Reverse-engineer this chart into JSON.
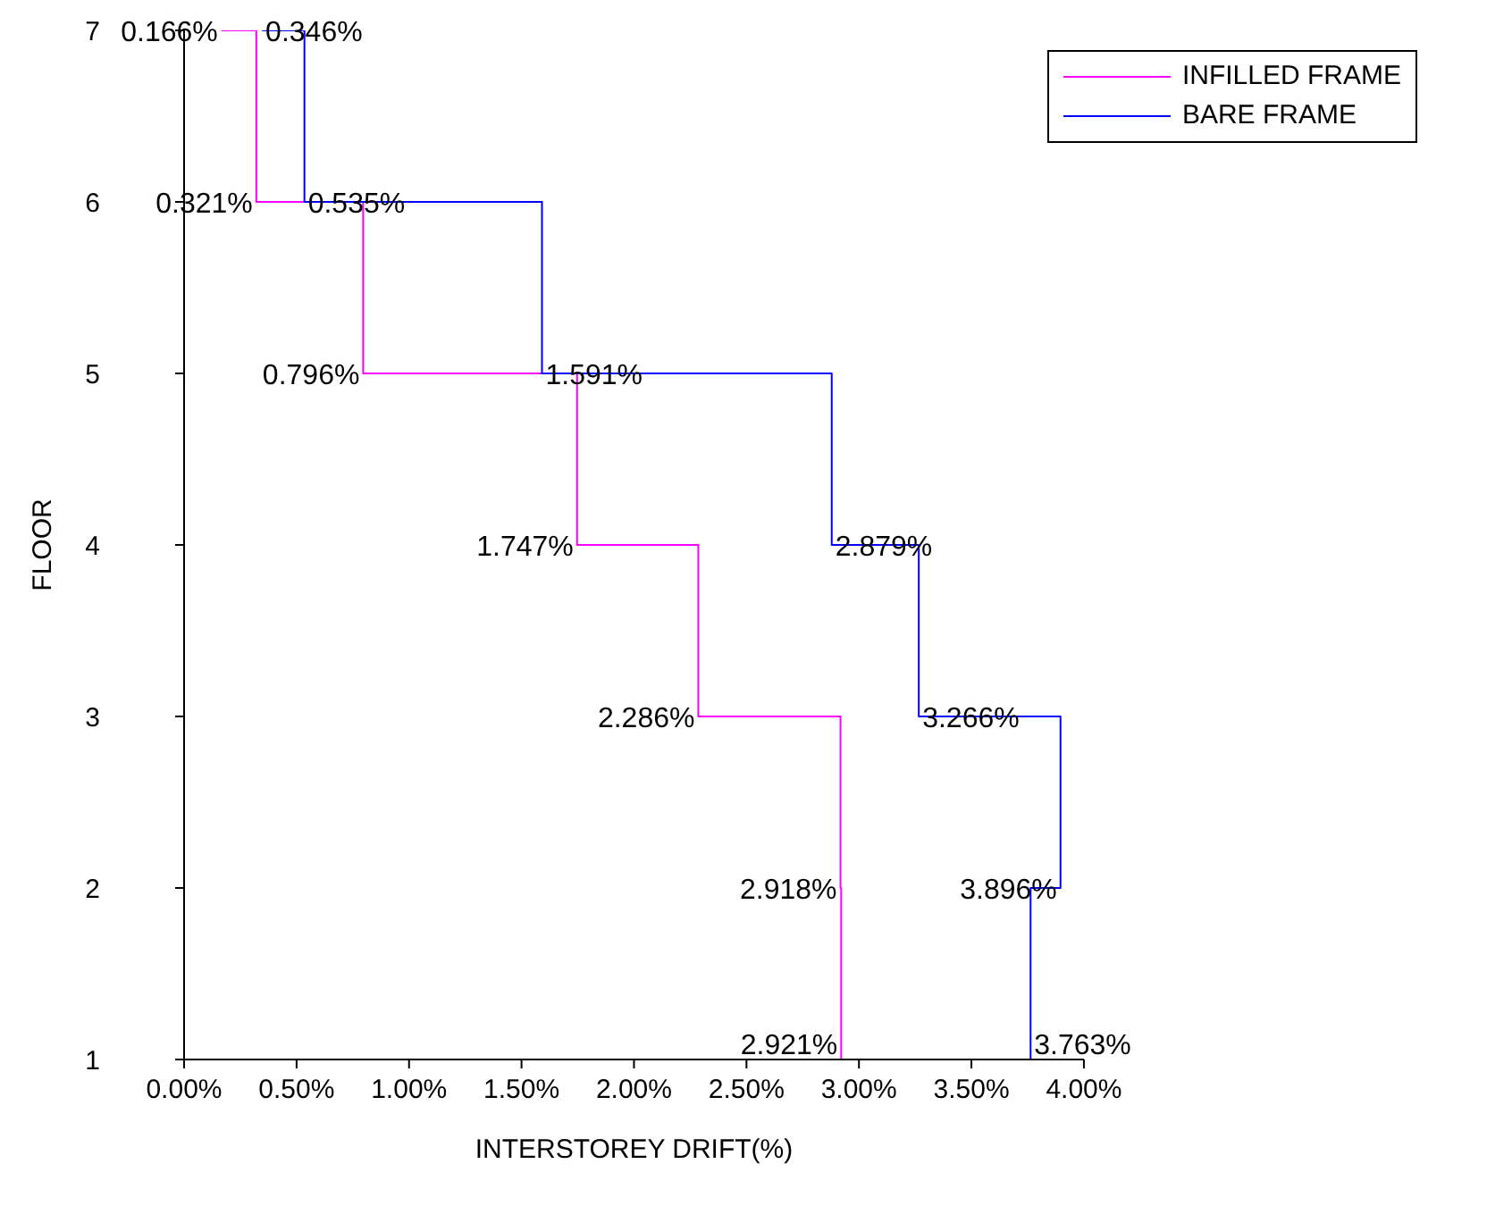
{
  "chart_data": {
    "type": "step",
    "orientation": "horizontal",
    "xlabel": "INTERSTOREY DRIFT(%)",
    "ylabel": "FLOOR",
    "categories": [
      "7",
      "6",
      "5",
      "4",
      "3",
      "2",
      "1"
    ],
    "xlim": [
      0,
      4
    ],
    "xticks": [
      {
        "value": 0,
        "label": "0.00%"
      },
      {
        "value": 0.5,
        "label": "0.50%"
      },
      {
        "value": 1,
        "label": "1.00%"
      },
      {
        "value": 1.5,
        "label": "1.50%"
      },
      {
        "value": 2,
        "label": "2.00%"
      },
      {
        "value": 2.5,
        "label": "2.50%"
      },
      {
        "value": 3,
        "label": "3.00%"
      },
      {
        "value": 3.5,
        "label": "3.50%"
      },
      {
        "value": 4,
        "label": "4.00%"
      }
    ],
    "series": [
      {
        "name": "INFILLED FRAME",
        "color": "#ff00ff",
        "values": [
          0.166,
          0.321,
          0.796,
          1.747,
          2.286,
          2.918,
          2.921
        ],
        "value_labels": [
          "0.166%",
          "0.321%",
          "0.796%",
          "1.747%",
          "2.286%",
          "2.918%",
          "2.921%"
        ]
      },
      {
        "name": "BARE FRAME",
        "color": "#0000ff",
        "values": [
          0.346,
          0.535,
          1.591,
          2.879,
          3.266,
          3.896,
          3.763
        ],
        "value_labels": [
          "0.346%",
          "0.535%",
          "1.591%",
          "2.879%",
          "3.266%",
          "3.896%",
          "3.763%"
        ]
      }
    ],
    "legend": "top right",
    "grid": false,
    "marker": "none",
    "line_style": "solid"
  }
}
